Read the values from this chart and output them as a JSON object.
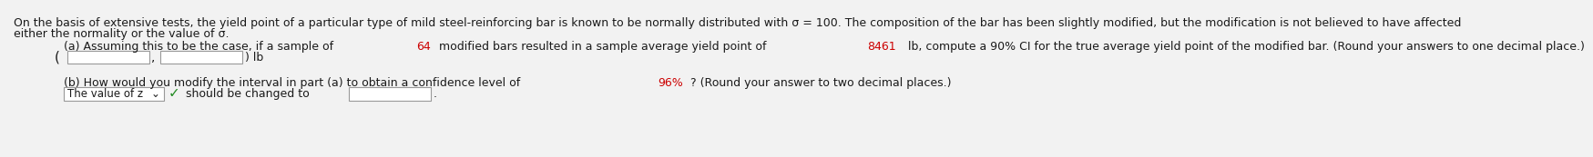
{
  "bg_color": "#f2f2f2",
  "text_color": "#1a1a1a",
  "highlight_color": "#cc0000",
  "green_color": "#228B22",
  "line1": "On the basis of extensive tests, the yield point of a particular type of mild steel-reinforcing bar is known to be normally distributed with σ = 100. The composition of the bar has been slightly modified, but the modification is not believed to have affected",
  "line2": "either the normality or the value of σ.",
  "part_a_pre": "(a) Assuming this to be the case, if a sample of ",
  "part_a_h1": "64",
  "part_a_mid1": " modified bars resulted in a sample average yield point of ",
  "part_a_h2": "8461",
  "part_a_mid2": " lb, compute a 90% CI for the true average yield point of the modified bar. (Round your answers to one decimal place.)",
  "part_b_pre": "(b) How would you modify the interval in part (a) to obtain a confidence level of ",
  "part_b_h1": "96%",
  "part_b_end": "? (Round your answer to two decimal places.)",
  "dropdown_label": "The value of z",
  "should_text": " should be changed to",
  "font_size": 9.0,
  "indent": 60
}
